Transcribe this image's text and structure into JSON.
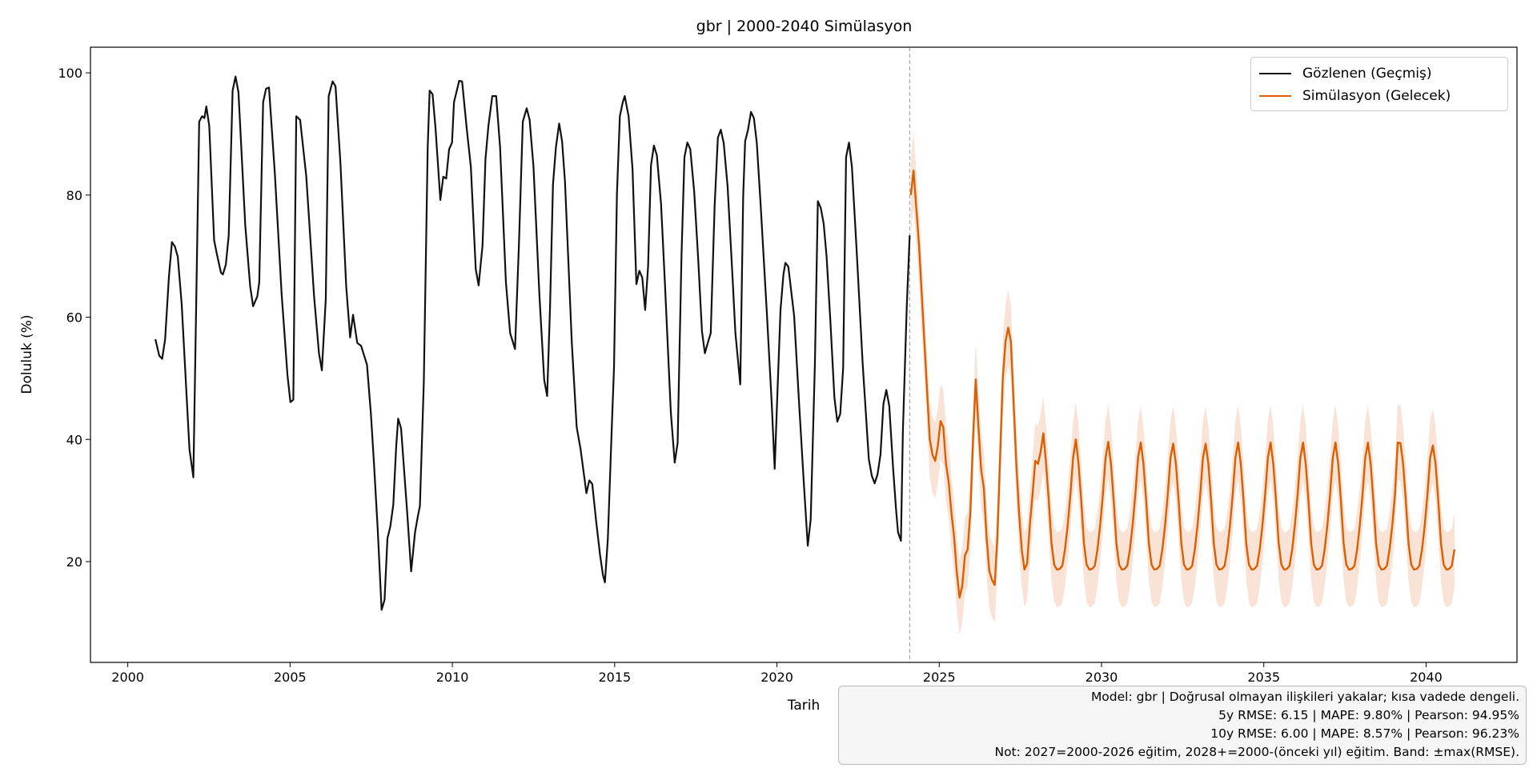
{
  "chart_data": {
    "type": "line",
    "title": "gbr | 2000-2040 Simülasyon",
    "xlabel": "Tarih",
    "ylabel": "Doluluk (%)",
    "xlim": [
      1998.85,
      2042.8
    ],
    "ylim": [
      3.5,
      104.2
    ],
    "x_ticks": [
      2000,
      2005,
      2010,
      2015,
      2020,
      2025,
      2030,
      2035,
      2040
    ],
    "y_ticks": [
      20,
      40,
      60,
      80,
      100
    ],
    "grid": false,
    "legend_position": "top-right",
    "split_year": 2024.09,
    "band_halfwidth": 6.15,
    "colors": {
      "observed": "#111111",
      "forecast": "#d95f02",
      "band": "#f9e3d6",
      "split_line": "#aaaaaa"
    },
    "series": [
      {
        "name": "Gözlenen (Geçmiş)",
        "points": [
          [
            2000.85,
            56.4
          ],
          [
            2000.97,
            53.7
          ],
          [
            2001.06,
            53.2
          ],
          [
            2001.15,
            56.4
          ],
          [
            2001.27,
            66.8
          ],
          [
            2001.36,
            72.3
          ],
          [
            2001.45,
            71.6
          ],
          [
            2001.54,
            69.9
          ],
          [
            2001.66,
            62.2
          ],
          [
            2001.9,
            38.4
          ],
          [
            2002.02,
            33.8
          ],
          [
            2002.2,
            92.0
          ],
          [
            2002.29,
            92.9
          ],
          [
            2002.36,
            92.6
          ],
          [
            2002.42,
            94.5
          ],
          [
            2002.51,
            91.3
          ],
          [
            2002.66,
            72.6
          ],
          [
            2002.75,
            70.2
          ],
          [
            2002.87,
            67.3
          ],
          [
            2002.93,
            67.0
          ],
          [
            2003.02,
            68.6
          ],
          [
            2003.11,
            73.4
          ],
          [
            2003.23,
            97.1
          ],
          [
            2003.32,
            99.4
          ],
          [
            2003.41,
            96.8
          ],
          [
            2003.62,
            75.0
          ],
          [
            2003.77,
            65.1
          ],
          [
            2003.86,
            61.8
          ],
          [
            2003.99,
            63.4
          ],
          [
            2004.05,
            65.7
          ],
          [
            2004.17,
            95.2
          ],
          [
            2004.26,
            97.4
          ],
          [
            2004.35,
            97.6
          ],
          [
            2004.53,
            83.6
          ],
          [
            2004.74,
            63.8
          ],
          [
            2004.92,
            50.5
          ],
          [
            2005.01,
            46.1
          ],
          [
            2005.1,
            46.5
          ],
          [
            2005.19,
            92.9
          ],
          [
            2005.31,
            92.3
          ],
          [
            2005.5,
            83.0
          ],
          [
            2005.74,
            63.4
          ],
          [
            2005.89,
            54.1
          ],
          [
            2005.98,
            51.3
          ],
          [
            2006.1,
            63.0
          ],
          [
            2006.19,
            96.2
          ],
          [
            2006.31,
            98.6
          ],
          [
            2006.4,
            97.8
          ],
          [
            2006.55,
            85.4
          ],
          [
            2006.73,
            65.0
          ],
          [
            2006.85,
            56.7
          ],
          [
            2006.94,
            60.4
          ],
          [
            2007.07,
            55.8
          ],
          [
            2007.19,
            55.3
          ],
          [
            2007.37,
            52.2
          ],
          [
            2007.49,
            44.2
          ],
          [
            2007.58,
            36.5
          ],
          [
            2007.7,
            25.3
          ],
          [
            2007.82,
            12.1
          ],
          [
            2007.91,
            13.7
          ],
          [
            2008.0,
            23.8
          ],
          [
            2008.09,
            25.8
          ],
          [
            2008.18,
            29.3
          ],
          [
            2008.27,
            38.9
          ],
          [
            2008.33,
            43.4
          ],
          [
            2008.42,
            41.8
          ],
          [
            2008.61,
            27.9
          ],
          [
            2008.73,
            18.4
          ],
          [
            2008.85,
            24.8
          ],
          [
            2008.94,
            27.5
          ],
          [
            2009.0,
            29.1
          ],
          [
            2009.12,
            49.3
          ],
          [
            2009.24,
            87.8
          ],
          [
            2009.3,
            97.1
          ],
          [
            2009.39,
            96.5
          ],
          [
            2009.48,
            91.0
          ],
          [
            2009.63,
            79.2
          ],
          [
            2009.72,
            83.0
          ],
          [
            2009.81,
            82.7
          ],
          [
            2009.9,
            87.5
          ],
          [
            2009.99,
            88.6
          ],
          [
            2010.05,
            95.2
          ],
          [
            2010.21,
            98.7
          ],
          [
            2010.3,
            98.6
          ],
          [
            2010.45,
            90.5
          ],
          [
            2010.57,
            84.6
          ],
          [
            2010.72,
            67.9
          ],
          [
            2010.81,
            65.2
          ],
          [
            2010.93,
            71.8
          ],
          [
            2011.02,
            85.9
          ],
          [
            2011.11,
            91.3
          ],
          [
            2011.23,
            96.2
          ],
          [
            2011.35,
            96.2
          ],
          [
            2011.47,
            87.8
          ],
          [
            2011.65,
            65.7
          ],
          [
            2011.78,
            57.4
          ],
          [
            2011.93,
            54.8
          ],
          [
            2012.05,
            71.8
          ],
          [
            2012.17,
            92.0
          ],
          [
            2012.29,
            94.2
          ],
          [
            2012.38,
            92.3
          ],
          [
            2012.5,
            84.6
          ],
          [
            2012.68,
            63.8
          ],
          [
            2012.83,
            49.7
          ],
          [
            2012.92,
            47.1
          ],
          [
            2013.01,
            61.8
          ],
          [
            2013.1,
            81.7
          ],
          [
            2013.19,
            87.8
          ],
          [
            2013.29,
            91.7
          ],
          [
            2013.38,
            88.8
          ],
          [
            2013.47,
            82.2
          ],
          [
            2013.68,
            55.8
          ],
          [
            2013.83,
            42.0
          ],
          [
            2013.95,
            38.4
          ],
          [
            2014.13,
            31.2
          ],
          [
            2014.22,
            33.3
          ],
          [
            2014.31,
            32.7
          ],
          [
            2014.43,
            26.6
          ],
          [
            2014.55,
            21.1
          ],
          [
            2014.64,
            17.8
          ],
          [
            2014.7,
            16.6
          ],
          [
            2014.79,
            23.7
          ],
          [
            2014.92,
            43.2
          ],
          [
            2014.98,
            51.7
          ],
          [
            2015.07,
            80.1
          ],
          [
            2015.16,
            92.9
          ],
          [
            2015.25,
            95.2
          ],
          [
            2015.31,
            96.2
          ],
          [
            2015.43,
            92.9
          ],
          [
            2015.55,
            84.3
          ],
          [
            2015.67,
            65.4
          ],
          [
            2015.76,
            67.6
          ],
          [
            2015.85,
            66.5
          ],
          [
            2015.94,
            61.2
          ],
          [
            2016.03,
            68.3
          ],
          [
            2016.12,
            84.9
          ],
          [
            2016.21,
            88.1
          ],
          [
            2016.3,
            86.5
          ],
          [
            2016.43,
            78.5
          ],
          [
            2016.55,
            65.4
          ],
          [
            2016.73,
            44.5
          ],
          [
            2016.85,
            36.2
          ],
          [
            2016.94,
            39.4
          ],
          [
            2017.06,
            70.2
          ],
          [
            2017.15,
            86.2
          ],
          [
            2017.24,
            88.6
          ],
          [
            2017.33,
            87.5
          ],
          [
            2017.45,
            80.6
          ],
          [
            2017.57,
            69.9
          ],
          [
            2017.69,
            57.7
          ],
          [
            2017.78,
            54.1
          ],
          [
            2017.87,
            55.8
          ],
          [
            2017.96,
            57.4
          ],
          [
            2018.08,
            78.2
          ],
          [
            2018.18,
            89.4
          ],
          [
            2018.27,
            90.7
          ],
          [
            2018.36,
            88.5
          ],
          [
            2018.48,
            81.4
          ],
          [
            2018.63,
            66.7
          ],
          [
            2018.72,
            57.4
          ],
          [
            2018.87,
            49.0
          ],
          [
            2018.96,
            79.8
          ],
          [
            2019.02,
            88.8
          ],
          [
            2019.11,
            90.7
          ],
          [
            2019.2,
            93.6
          ],
          [
            2019.29,
            92.6
          ],
          [
            2019.38,
            88.5
          ],
          [
            2019.5,
            78.2
          ],
          [
            2019.69,
            60.6
          ],
          [
            2019.84,
            45.8
          ],
          [
            2019.93,
            35.2
          ],
          [
            2020.02,
            48.4
          ],
          [
            2020.11,
            61.2
          ],
          [
            2020.2,
            67.0
          ],
          [
            2020.26,
            68.9
          ],
          [
            2020.35,
            68.3
          ],
          [
            2020.53,
            60.2
          ],
          [
            2020.68,
            46.1
          ],
          [
            2020.83,
            32.7
          ],
          [
            2020.95,
            22.6
          ],
          [
            2021.04,
            26.9
          ],
          [
            2021.17,
            52.5
          ],
          [
            2021.26,
            79.0
          ],
          [
            2021.35,
            77.9
          ],
          [
            2021.44,
            75.3
          ],
          [
            2021.53,
            69.9
          ],
          [
            2021.65,
            59.0
          ],
          [
            2021.77,
            46.9
          ],
          [
            2021.86,
            42.9
          ],
          [
            2021.95,
            44.2
          ],
          [
            2022.04,
            51.7
          ],
          [
            2022.13,
            86.2
          ],
          [
            2022.22,
            88.6
          ],
          [
            2022.31,
            84.6
          ],
          [
            2022.46,
            70.5
          ],
          [
            2022.64,
            52.5
          ],
          [
            2022.83,
            36.8
          ],
          [
            2022.92,
            34.1
          ],
          [
            2023.01,
            32.8
          ],
          [
            2023.1,
            34.3
          ],
          [
            2023.19,
            37.5
          ],
          [
            2023.28,
            45.8
          ],
          [
            2023.37,
            48.1
          ],
          [
            2023.46,
            45.5
          ],
          [
            2023.58,
            35.2
          ],
          [
            2023.67,
            28.5
          ],
          [
            2023.73,
            24.8
          ],
          [
            2023.82,
            23.4
          ],
          [
            2023.88,
            41.3
          ],
          [
            2024.0,
            61.8
          ],
          [
            2024.09,
            73.4
          ]
        ]
      },
      {
        "name": "Simülasyon (Gelecek)",
        "monthly": {
          "2024": [
            null,
            80,
            84,
            78,
            72,
            64,
            56,
            48,
            40,
            37.5,
            36.5,
            39
          ],
          "2025": [
            43,
            42,
            36,
            33,
            28,
            24,
            18.2,
            14.1,
            16,
            21,
            22,
            28
          ],
          "2026": [
            40,
            49.8,
            42,
            35,
            32,
            24,
            18.5,
            17,
            16.2,
            24,
            37,
            50
          ],
          "2027": [
            56,
            58.3,
            56,
            46,
            36,
            28,
            22,
            18.7,
            19.7,
            26,
            31,
            36.5
          ],
          "2028": [
            36,
            38,
            41,
            36,
            30,
            23,
            19.5,
            18.7,
            18.8,
            19.3,
            22,
            26
          ],
          "2029": [
            31,
            37,
            40,
            36,
            30,
            23,
            19.5,
            18.7,
            18.8,
            19.3,
            22,
            26
          ],
          "2030": [
            31,
            37,
            39.6,
            36,
            30,
            23,
            19.5,
            18.7,
            18.8,
            19.3,
            22,
            26
          ],
          "2031": [
            31,
            37,
            39.5,
            36,
            30,
            23,
            19.5,
            18.7,
            18.8,
            19.3,
            22,
            26
          ],
          "2032": [
            31,
            37,
            39.3,
            36,
            30,
            23,
            19.5,
            18.7,
            18.8,
            19.3,
            22,
            26
          ],
          "2033": [
            31,
            37,
            39.3,
            36,
            30,
            23,
            19.5,
            18.7,
            18.8,
            19.3,
            22,
            26
          ],
          "2034": [
            31,
            37,
            39.5,
            36,
            30,
            23,
            19.5,
            18.7,
            18.8,
            19.3,
            22,
            26
          ],
          "2035": [
            31,
            37,
            39.5,
            36,
            30,
            23,
            19.5,
            18.7,
            18.8,
            19.3,
            22,
            26
          ],
          "2036": [
            31,
            37,
            39.5,
            36,
            30,
            23,
            19.5,
            18.7,
            18.8,
            19.3,
            22,
            26
          ],
          "2037": [
            31,
            37,
            39.5,
            36,
            30,
            23,
            19.5,
            18.7,
            18.8,
            19.3,
            22,
            26
          ],
          "2038": [
            31,
            37,
            39.5,
            36,
            30,
            23,
            19.5,
            18.7,
            18.8,
            19.3,
            22,
            26
          ],
          "2039": [
            31,
            39.5,
            39.4,
            36,
            30,
            23,
            19.5,
            18.7,
            18.8,
            19.3,
            22,
            26
          ],
          "2040": [
            31,
            37,
            39,
            36,
            30,
            23,
            19.5,
            18.7,
            18.8,
            19.3,
            22
          ]
        }
      }
    ]
  },
  "stats_box": {
    "line1": "Model: gbr | Doğrusal olmayan ilişkileri yakalar; kısa vadede dengeli.",
    "line2": "5y RMSE: 6.15 | MAPE: 9.80% | Pearson: 94.95%",
    "line3": "10y RMSE: 6.00 | MAPE: 8.57% | Pearson: 96.23%",
    "line4": "Not: 2027=2000-2026 eğitim, 2028+=2000-(önceki yıl) eğitim. Band: ±max(RMSE)."
  }
}
